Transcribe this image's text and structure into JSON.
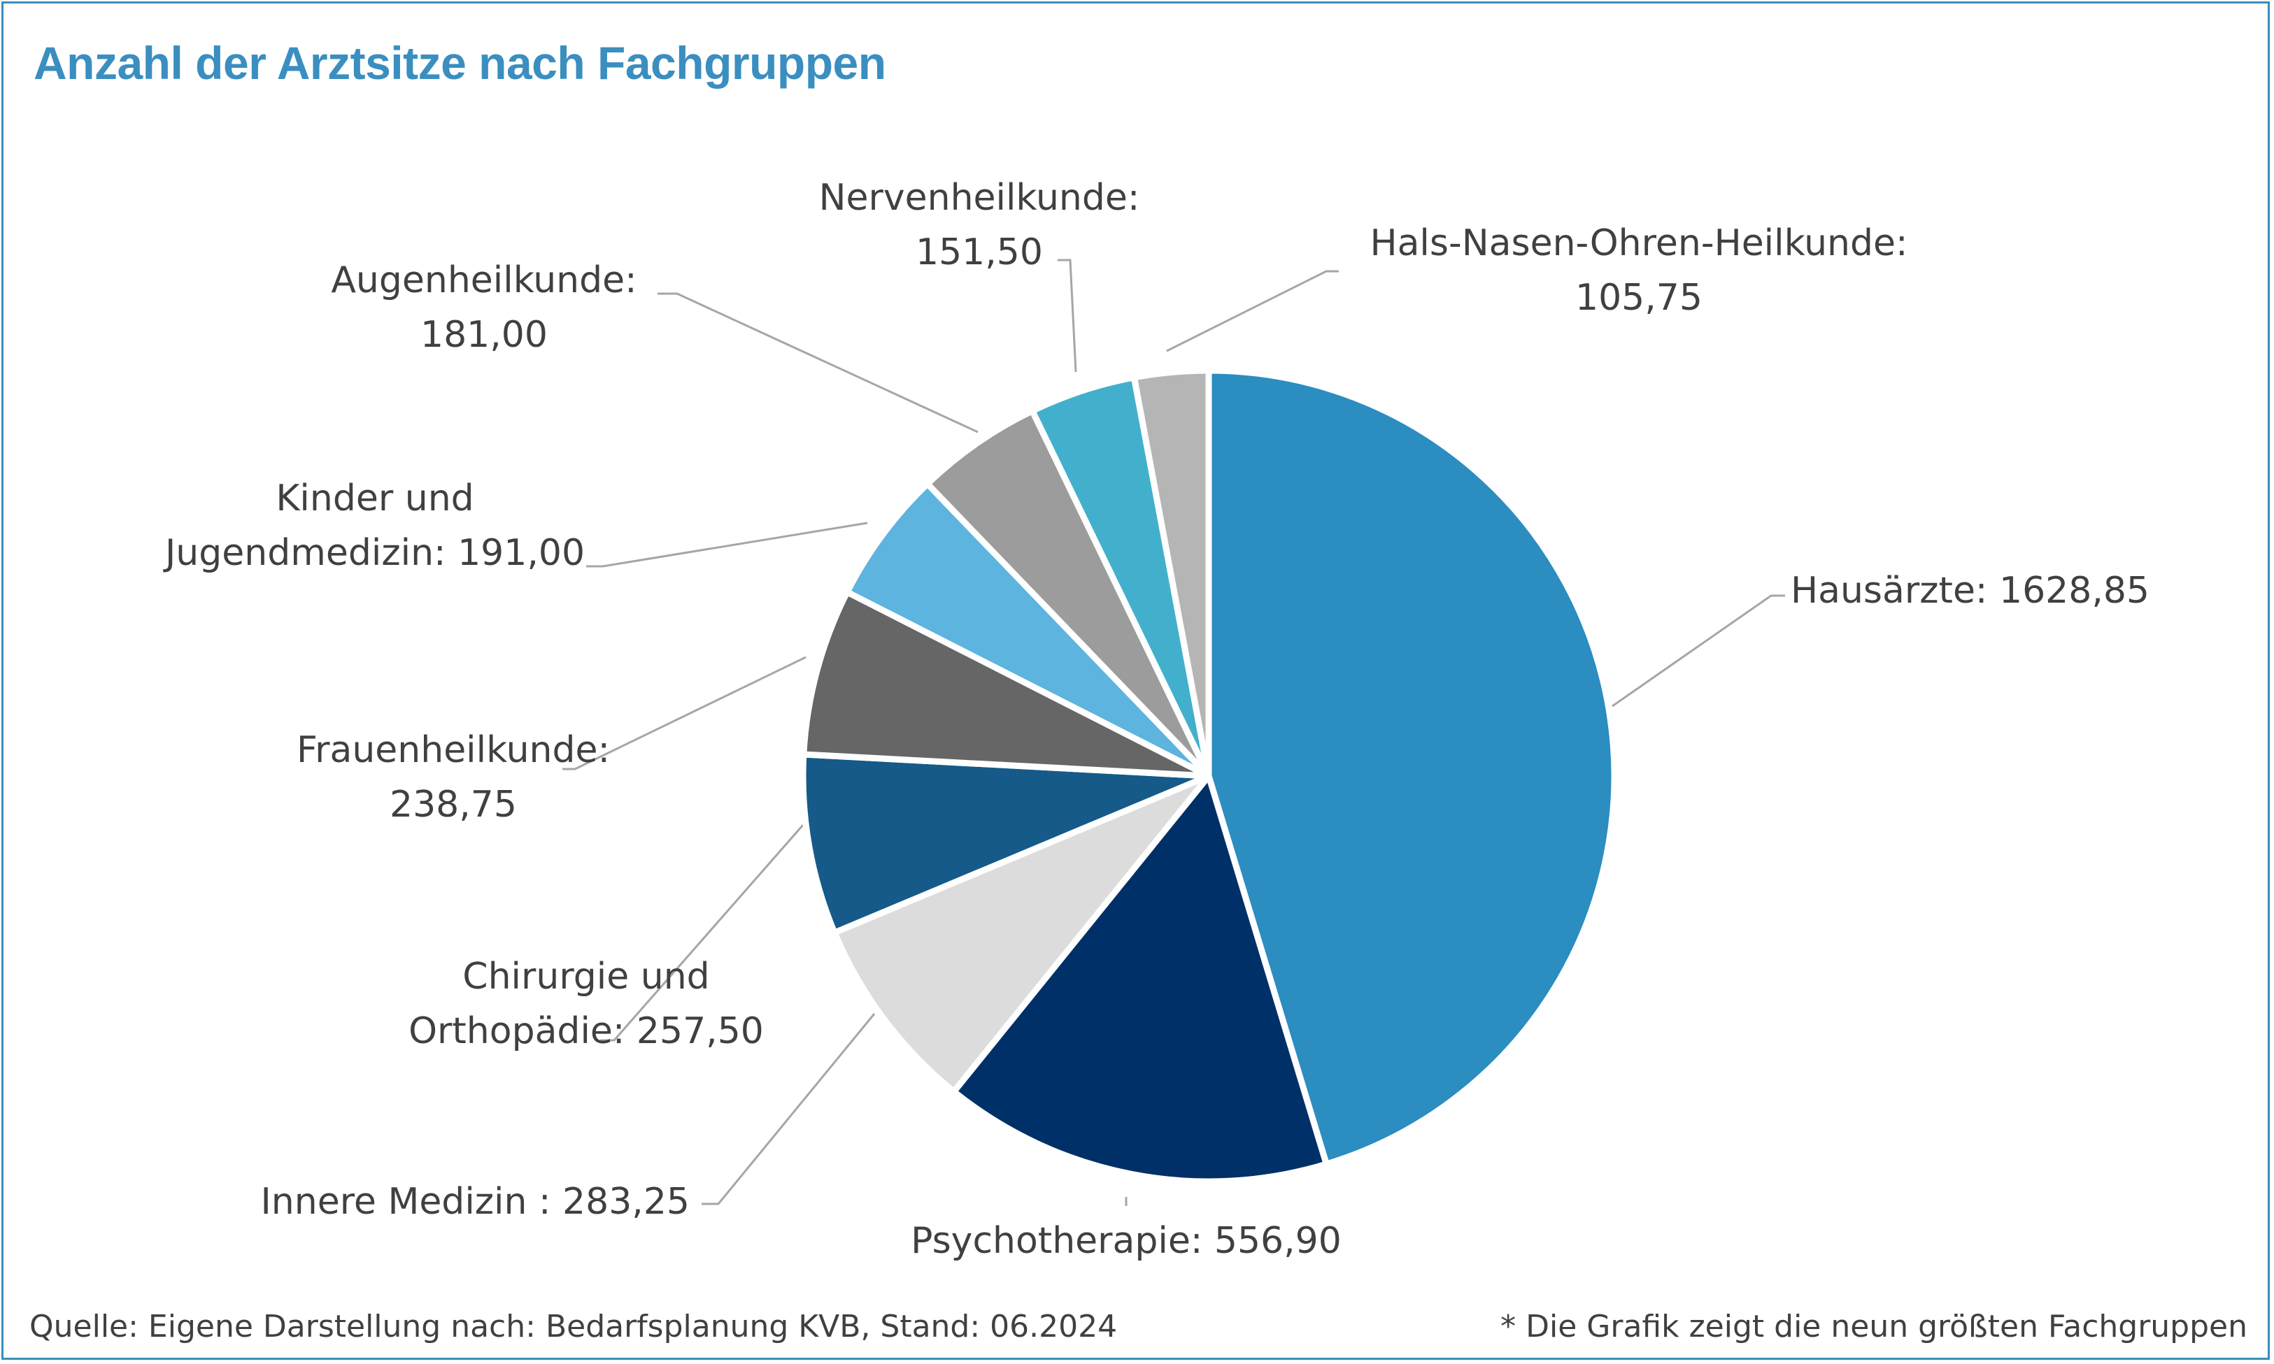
{
  "chart_data": {
    "type": "pie",
    "title": "Anzahl der Arztsitze nach Fachgruppen",
    "slices": [
      {
        "label": "Hausärzte: 1628,85",
        "value": 1628.85,
        "color": "#2b8dc0"
      },
      {
        "label": "Psychotherapie: 556,90",
        "value": 556.9,
        "color": "#003068"
      },
      {
        "label": "Innere Medizin : 283,25",
        "value": 283.25,
        "color": "#dcdcdc"
      },
      {
        "label": "Chirurgie und Orthopädie: 257,50",
        "value": 257.5,
        "color": "#155a88"
      },
      {
        "label": "Frauenheilkunde: 238,75",
        "value": 238.75,
        "color": "#666666"
      },
      {
        "label": "Kinder und Jugendmedizin: 191,00",
        "value": 191.0,
        "color": "#5db4de"
      },
      {
        "label": "Augenheilkunde: 181,00",
        "value": 181.0,
        "color": "#9c9c9c"
      },
      {
        "label": "Nervenheilkunde: 151,50",
        "value": 151.5,
        "color": "#42b0cd"
      },
      {
        "label": "Hals-Nasen-Ohren-Heilkunde: 105,75",
        "value": 105.75,
        "color": "#b5b5b5"
      }
    ],
    "labels": [
      {
        "lines": [
          "Hausärzte: 1628,85"
        ]
      },
      {
        "lines": [
          "Psychotherapie: 556,90"
        ]
      },
      {
        "lines": [
          "Innere Medizin : 283,25"
        ]
      },
      {
        "lines": [
          "Chirurgie und",
          "Orthopädie: 257,50"
        ]
      },
      {
        "lines": [
          "Frauenheilkunde:",
          "238,75"
        ]
      },
      {
        "lines": [
          "Kinder und",
          "Jugendmedizin: 191,00"
        ]
      },
      {
        "lines": [
          "Augenheilkunde:",
          "181,00"
        ]
      },
      {
        "lines": [
          "Nervenheilkunde:",
          "151,50"
        ]
      },
      {
        "lines": [
          "Hals-Nasen-Ohren-Heilkunde:",
          "105,75"
        ]
      }
    ],
    "legend": "none"
  },
  "footer": {
    "source": "Quelle: Eigene Darstellung nach: Bedarfsplanung KVB, Stand: 06.2024",
    "note": "* Die Grafik zeigt die neun größten Fachgruppen"
  }
}
